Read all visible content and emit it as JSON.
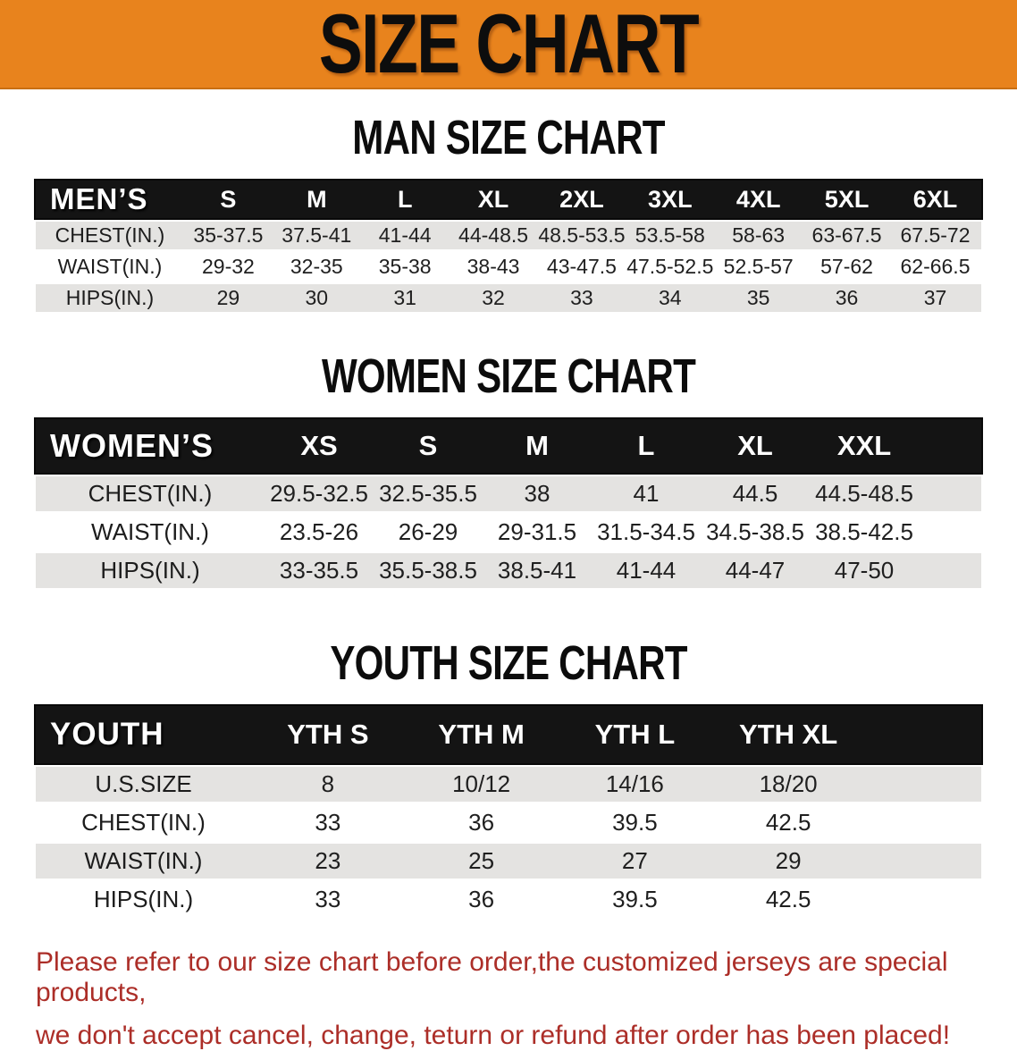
{
  "banner": {
    "title": "SIZE CHART",
    "bg_color": "#E8831D",
    "text_color": "#0D0D0D"
  },
  "sections": [
    {
      "title": "MAN SIZE CHART",
      "table": {
        "corner_label": "MEN’S",
        "columns": [
          "S",
          "M",
          "L",
          "XL",
          "2XL",
          "3XL",
          "4XL",
          "5XL",
          "6XL"
        ],
        "rows": [
          {
            "label": "CHEST(IN.)",
            "values": [
              "35-37.5",
              "37.5-41",
              "41-44",
              "44-48.5",
              "48.5-53.5",
              "53.5-58",
              "58-63",
              "63-67.5",
              "67.5-72"
            ]
          },
          {
            "label": "WAIST(IN.)",
            "values": [
              "29-32",
              "32-35",
              "35-38",
              "38-43",
              "43-47.5",
              "47.5-52.5",
              "52.5-57",
              "57-62",
              "62-66.5"
            ]
          },
          {
            "label": "HIPS(IN.)",
            "values": [
              "29",
              "30",
              "31",
              "32",
              "33",
              "34",
              "35",
              "36",
              "37"
            ]
          }
        ]
      }
    },
    {
      "title": "WOMEN SIZE CHART",
      "table": {
        "corner_label": "WOMEN’S",
        "columns": [
          "XS",
          "S",
          "M",
          "L",
          "XL",
          "XXL"
        ],
        "rows": [
          {
            "label": "CHEST(IN.)",
            "values": [
              "29.5-32.5",
              "32.5-35.5",
              "38",
              "41",
              "44.5",
              "44.5-48.5"
            ]
          },
          {
            "label": "WAIST(IN.)",
            "values": [
              "23.5-26",
              "26-29",
              "29-31.5",
              "31.5-34.5",
              "34.5-38.5",
              "38.5-42.5"
            ]
          },
          {
            "label": "HIPS(IN.)",
            "values": [
              "33-35.5",
              "35.5-38.5",
              "38.5-41",
              "41-44",
              "44-47",
              "47-50"
            ]
          }
        ]
      }
    },
    {
      "title": "YOUTH SIZE CHART",
      "table": {
        "corner_label": "YOUTH",
        "columns": [
          "YTH S",
          "YTH M",
          "YTH L",
          "YTH XL"
        ],
        "rows": [
          {
            "label": "U.S.SIZE",
            "values": [
              "8",
              "10/12",
              "14/16",
              "18/20"
            ]
          },
          {
            "label": "CHEST(IN.)",
            "values": [
              "33",
              "36",
              "39.5",
              "42.5"
            ]
          },
          {
            "label": "WAIST(IN.)",
            "values": [
              "23",
              "25",
              "27",
              "29"
            ]
          },
          {
            "label": "HIPS(IN.)",
            "values": [
              "33",
              "36",
              "39.5",
              "42.5"
            ]
          }
        ]
      }
    }
  ],
  "footer": {
    "line1": "Please refer to our size chart before order,the customized jerseys are special products,",
    "line2": "we don't accept cancel, change, teturn or refund after order has been placed!",
    "text_color": "#AC2E28"
  },
  "table_style": {
    "header_bg": "#141414",
    "stripe_row_bg": "#E4E3E1"
  }
}
